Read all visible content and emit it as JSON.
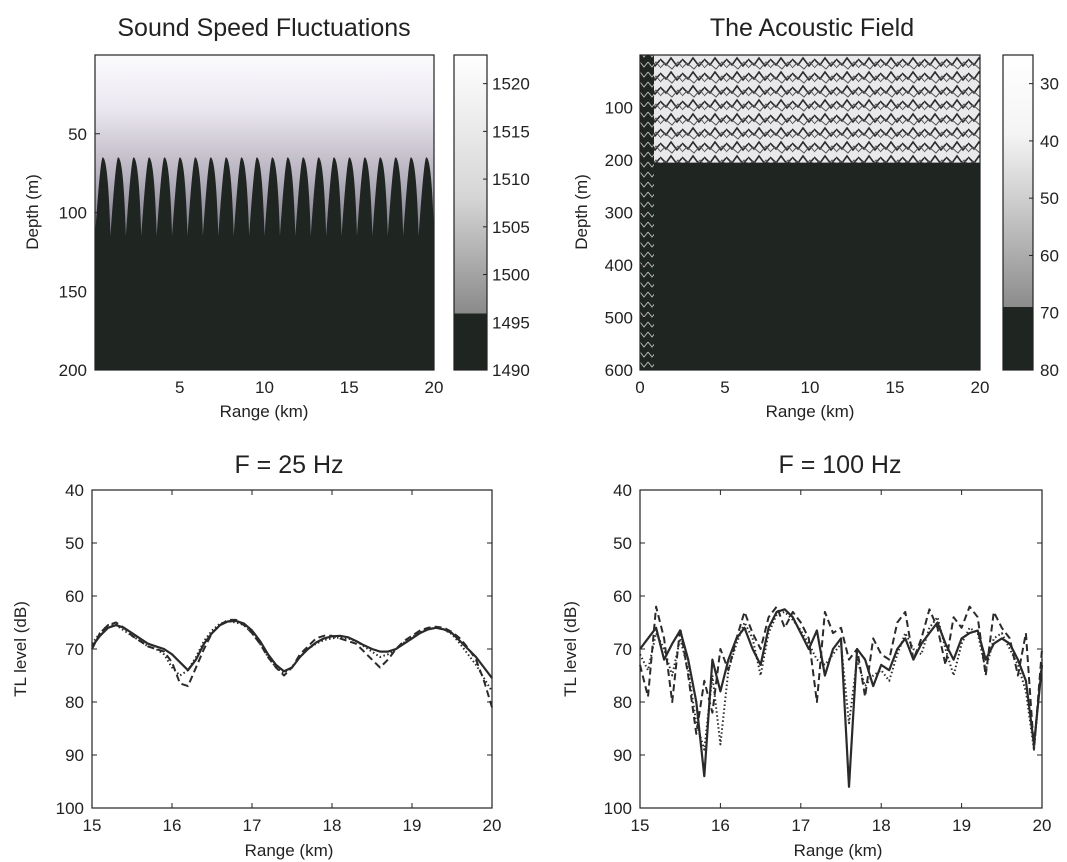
{
  "chart_data": [
    {
      "type": "heatmap",
      "title": "Sound Speed Fluctuations",
      "xlabel": "Range (km)",
      "ylabel": "Depth (m)",
      "xlim": [
        0,
        20
      ],
      "ylim": [
        200,
        0
      ],
      "xticks": [
        "5",
        "10",
        "15",
        "20"
      ],
      "yticks": [
        "50",
        "100",
        "150",
        "200"
      ],
      "ytick_values": [
        50,
        100,
        150,
        200
      ],
      "xtick_values": [
        5,
        10,
        15,
        20
      ],
      "colorbar_ticks": [
        "1490",
        "1495",
        "1500",
        "1505",
        "1510",
        "1515",
        "1520"
      ],
      "colorbar_range": [
        1490,
        1523
      ],
      "num_internal_waves": 22,
      "thermocline_depth_crest": 65,
      "thermocline_depth_trough": 115
    },
    {
      "type": "heatmap",
      "title": "The Acoustic Field",
      "xlabel": "Range (km)",
      "ylabel": "Depth (m)",
      "xlim": [
        0,
        20
      ],
      "ylim": [
        600,
        0
      ],
      "xticks": [
        "0",
        "5",
        "10",
        "15",
        "20"
      ],
      "xtick_values": [
        0,
        5,
        10,
        15,
        20
      ],
      "yticks": [
        "100",
        "200",
        "300",
        "400",
        "500",
        "600"
      ],
      "ytick_values": [
        100,
        200,
        300,
        400,
        500,
        600
      ],
      "colorbar_ticks": [
        "30",
        "40",
        "50",
        "60",
        "70",
        "80"
      ],
      "colorbar_range": [
        25,
        80
      ],
      "bottom_depth": 205
    },
    {
      "type": "line",
      "title": "F = 25 Hz",
      "xlabel": "Range (km)",
      "ylabel": "TL level (dB)",
      "xlim": [
        15,
        20
      ],
      "ylim": [
        100,
        40
      ],
      "xticks": [
        "15",
        "16",
        "17",
        "18",
        "19",
        "20"
      ],
      "yticks": [
        "40",
        "50",
        "60",
        "70",
        "80",
        "90",
        "100"
      ],
      "x": [
        15.0,
        15.1,
        15.2,
        15.3,
        15.4,
        15.5,
        15.6,
        15.7,
        15.8,
        15.9,
        16.0,
        16.1,
        16.2,
        16.3,
        16.4,
        16.5,
        16.6,
        16.7,
        16.8,
        16.9,
        17.0,
        17.1,
        17.2,
        17.3,
        17.4,
        17.5,
        17.6,
        17.7,
        17.8,
        17.9,
        18.0,
        18.1,
        18.2,
        18.3,
        18.4,
        18.5,
        18.6,
        18.7,
        18.8,
        18.9,
        19.0,
        19.1,
        19.2,
        19.3,
        19.4,
        19.5,
        19.6,
        19.7,
        19.8,
        19.9,
        20.0
      ],
      "series": [
        {
          "style": "solid",
          "values": [
            69.5,
            67.5,
            66.0,
            65.5,
            66.0,
            67.0,
            68.0,
            69.0,
            69.5,
            70.0,
            71.0,
            72.5,
            74.0,
            72.0,
            69.0,
            67.0,
            65.5,
            64.8,
            64.7,
            65.2,
            66.5,
            68.5,
            71.0,
            73.0,
            74.2,
            73.5,
            71.5,
            70.0,
            68.8,
            68.0,
            67.6,
            67.5,
            67.8,
            68.5,
            69.3,
            70.0,
            70.5,
            70.5,
            70.0,
            69.0,
            68.0,
            67.0,
            66.3,
            66.0,
            66.3,
            67.0,
            68.5,
            70.0,
            71.5,
            73.5,
            75.5
          ]
        },
        {
          "style": "dashed",
          "values": [
            70.0,
            67.0,
            65.5,
            65.0,
            66.0,
            67.5,
            68.5,
            69.5,
            70.0,
            70.5,
            72.5,
            76.5,
            77.0,
            73.5,
            70.0,
            67.0,
            65.5,
            64.5,
            64.5,
            65.5,
            67.0,
            69.0,
            71.5,
            73.5,
            75.0,
            73.5,
            71.0,
            69.5,
            68.0,
            67.5,
            67.5,
            68.0,
            68.5,
            69.0,
            70.5,
            72.0,
            73.5,
            72.0,
            70.0,
            68.5,
            67.5,
            66.5,
            66.0,
            65.8,
            66.0,
            66.8,
            68.0,
            69.8,
            72.0,
            76.0,
            81.0
          ]
        },
        {
          "style": "dotted",
          "values": [
            69.0,
            67.0,
            65.5,
            65.5,
            66.5,
            67.5,
            68.5,
            69.5,
            70.0,
            71.0,
            73.5,
            75.0,
            74.0,
            71.5,
            68.5,
            66.5,
            65.2,
            64.8,
            65.0,
            65.5,
            67.0,
            69.0,
            71.5,
            73.5,
            74.5,
            73.5,
            71.5,
            70.0,
            69.0,
            68.3,
            68.0,
            67.8,
            68.0,
            68.5,
            69.5,
            70.5,
            71.5,
            71.0,
            70.0,
            68.8,
            67.8,
            66.8,
            66.2,
            66.0,
            66.3,
            67.2,
            69.0,
            71.0,
            73.0,
            75.5,
            78.0
          ]
        }
      ]
    },
    {
      "type": "line",
      "title": "F = 100 Hz",
      "xlabel": "Range (km)",
      "ylabel": "TL level (dB)",
      "xlim": [
        15,
        20
      ],
      "ylim": [
        100,
        40
      ],
      "xticks": [
        "15",
        "16",
        "17",
        "18",
        "19",
        "20"
      ],
      "yticks": [
        "40",
        "50",
        "60",
        "70",
        "80",
        "90",
        "100"
      ],
      "x": [
        15.0,
        15.1,
        15.2,
        15.3,
        15.4,
        15.5,
        15.6,
        15.7,
        15.8,
        15.9,
        16.0,
        16.1,
        16.2,
        16.3,
        16.4,
        16.5,
        16.6,
        16.7,
        16.8,
        16.9,
        17.0,
        17.1,
        17.2,
        17.3,
        17.4,
        17.5,
        17.6,
        17.7,
        17.8,
        17.9,
        18.0,
        18.1,
        18.2,
        18.3,
        18.4,
        18.5,
        18.6,
        18.7,
        18.8,
        18.9,
        19.0,
        19.1,
        19.2,
        19.3,
        19.4,
        19.5,
        19.6,
        19.7,
        19.8,
        19.9,
        20.0
      ],
      "series": [
        {
          "style": "solid",
          "values": [
            70.0,
            68.0,
            66.0,
            72.0,
            69.0,
            66.5,
            72.0,
            80.0,
            94.0,
            72.0,
            78.0,
            72.0,
            68.0,
            66.0,
            70.0,
            73.0,
            66.0,
            63.0,
            62.5,
            64.0,
            67.0,
            70.0,
            66.5,
            75.0,
            70.0,
            68.0,
            96.0,
            70.0,
            72.0,
            77.0,
            73.0,
            74.0,
            70.0,
            68.0,
            72.0,
            69.0,
            67.0,
            65.0,
            69.0,
            72.0,
            68.0,
            67.0,
            66.5,
            72.0,
            69.0,
            68.0,
            69.0,
            72.0,
            76.0,
            88.0,
            73.0
          ]
        },
        {
          "style": "dashed",
          "values": [
            73.0,
            79.0,
            62.0,
            68.0,
            80.0,
            66.0,
            75.0,
            86.0,
            76.0,
            82.0,
            70.0,
            74.0,
            68.0,
            63.0,
            67.0,
            70.0,
            64.0,
            62.0,
            66.0,
            63.0,
            65.0,
            68.0,
            80.0,
            63.0,
            67.0,
            66.0,
            72.0,
            70.0,
            79.0,
            68.0,
            71.0,
            72.0,
            65.0,
            63.0,
            72.0,
            68.0,
            62.5,
            66.0,
            73.0,
            64.0,
            66.0,
            62.0,
            64.0,
            75.0,
            63.0,
            66.0,
            68.0,
            75.0,
            67.0,
            89.0,
            70.0
          ]
        },
        {
          "style": "dotted",
          "values": [
            71.0,
            74.0,
            67.0,
            70.0,
            75.0,
            68.0,
            74.0,
            84.0,
            89.0,
            75.0,
            88.0,
            74.0,
            69.0,
            65.0,
            68.0,
            75.0,
            67.0,
            63.5,
            63.0,
            64.5,
            66.5,
            69.0,
            72.0,
            73.0,
            71.0,
            69.0,
            84.0,
            72.0,
            77.0,
            75.0,
            74.0,
            76.0,
            71.0,
            67.0,
            70.0,
            71.0,
            66.0,
            64.0,
            70.0,
            75.0,
            69.0,
            66.0,
            67.0,
            74.0,
            68.0,
            67.0,
            70.0,
            73.0,
            78.0,
            89.0,
            72.0
          ]
        }
      ]
    }
  ]
}
